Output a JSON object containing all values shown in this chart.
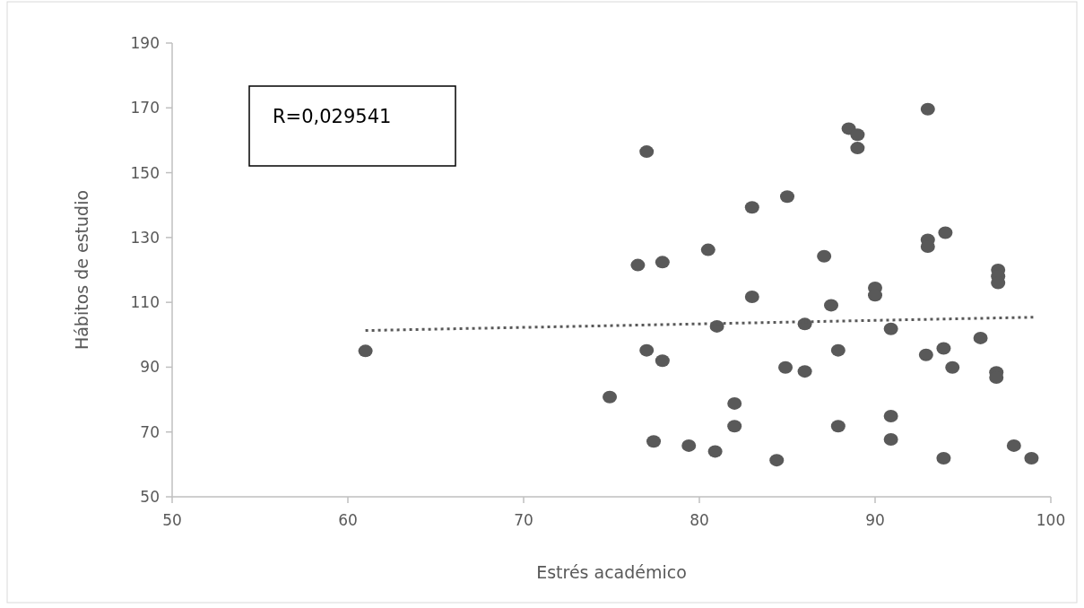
{
  "chart_data": {
    "type": "scatter",
    "xlabel": "Estrés académico",
    "ylabel": "Hábitos de estudio",
    "annotations": [
      "R=0,029541"
    ],
    "xlim": [
      50,
      100
    ],
    "xticks": [
      50,
      60,
      70,
      80,
      90,
      100
    ],
    "ylim": [
      50,
      190
    ],
    "yticks": [
      50,
      70,
      90,
      110,
      130,
      150,
      170,
      190
    ],
    "grid": false,
    "series": [
      {
        "color": "#595959",
        "marker": "circle",
        "x": [
          61,
          77,
          77.9,
          74.9,
          82,
          82,
          77.4,
          79.4,
          80.9,
          84.4,
          84.9,
          86,
          87.9,
          87.9,
          90.9,
          90.9,
          90.9,
          92.9,
          93.9,
          94.4,
          93.9,
          96,
          96.9,
          96.9,
          97.9,
          98.9,
          77,
          76.5,
          77.9,
          80.5,
          83,
          85,
          83,
          87.1,
          87.5,
          90,
          90,
          88.5,
          89,
          89,
          93,
          93,
          93,
          94,
          97,
          97,
          97,
          81,
          86
        ],
        "values": [
          95,
          95.2,
          92,
          80.8,
          78.8,
          71.8,
          67.1,
          65.8,
          64,
          61.3,
          89.9,
          88.7,
          95.2,
          71.8,
          101.8,
          74.9,
          67.7,
          93.8,
          95.8,
          89.9,
          61.9,
          99,
          88.4,
          86.8,
          65.8,
          61.9,
          156.5,
          121.5,
          122.4,
          126.2,
          139.3,
          142.6,
          111.7,
          124.2,
          109.1,
          114.5,
          112.2,
          163.6,
          161.7,
          157.6,
          169.6,
          129.3,
          127.2,
          131.5,
          120,
          118,
          116,
          102.6,
          103.3
        ]
      },
      {
        "type": "line",
        "color": "#595959",
        "line_style": "dotted",
        "marker": "none",
        "x": [
          61,
          99
        ],
        "values": [
          101.3,
          105.4
        ]
      }
    ]
  }
}
